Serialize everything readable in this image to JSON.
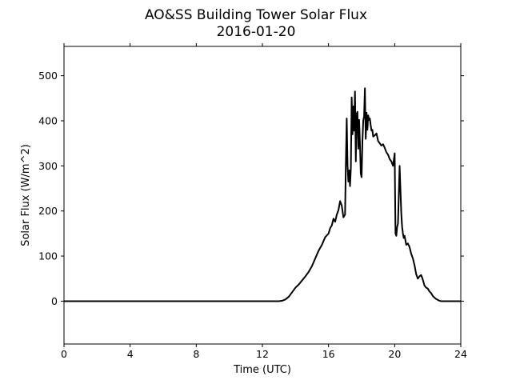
{
  "chart_data": {
    "type": "line",
    "title": "AO&SS Building Tower Solar Flux",
    "subtitle": "2016-01-20",
    "xlabel": "Time (UTC)",
    "ylabel": "Solar Flux (W/m^2)",
    "xlim": [
      0,
      24
    ],
    "ylim": [
      -95,
      565
    ],
    "xticks": [
      0,
      4,
      8,
      12,
      16,
      20,
      24
    ],
    "xtick_labels": [
      "0",
      "4",
      "8",
      "12",
      "16",
      "20",
      "24"
    ],
    "yticks": [
      0,
      100,
      200,
      300,
      400,
      500
    ],
    "ytick_labels": [
      "0",
      "100",
      "200",
      "300",
      "400",
      "500"
    ],
    "grid": false,
    "series": [
      {
        "color": "#000000",
        "x": [
          0,
          2,
          4,
          6,
          8,
          10,
          12,
          13.0,
          13.2,
          13.4,
          13.6,
          13.8,
          14.0,
          14.2,
          14.4,
          14.6,
          14.8,
          15.0,
          15.2,
          15.4,
          15.6,
          15.8,
          16.0,
          16.1,
          16.2,
          16.3,
          16.4,
          16.5,
          16.6,
          16.7,
          16.8,
          16.9,
          17.0,
          17.05,
          17.1,
          17.15,
          17.2,
          17.25,
          17.3,
          17.35,
          17.4,
          17.45,
          17.5,
          17.55,
          17.6,
          17.65,
          17.7,
          17.75,
          17.8,
          17.85,
          17.9,
          17.95,
          18.0,
          18.05,
          18.1,
          18.15,
          18.2,
          18.25,
          18.3,
          18.35,
          18.4,
          18.45,
          18.5,
          18.55,
          18.6,
          18.65,
          18.7,
          18.8,
          18.9,
          19.0,
          19.1,
          19.2,
          19.3,
          19.4,
          19.5,
          19.6,
          19.7,
          19.8,
          19.9,
          20.0,
          20.05,
          20.1,
          20.15,
          20.2,
          20.3,
          20.4,
          20.45,
          20.5,
          20.55,
          20.6,
          20.7,
          20.8,
          20.9,
          21.0,
          21.1,
          21.2,
          21.3,
          21.4,
          21.5,
          21.6,
          21.7,
          21.8,
          21.9,
          22.0,
          22.1,
          22.2,
          22.3,
          22.4,
          22.5,
          22.6,
          22.7,
          22.8,
          22.9,
          23.0,
          23.2,
          23.4,
          23.6,
          23.8,
          24.0
        ],
        "y": [
          0,
          0,
          0,
          0,
          0,
          0,
          0,
          0,
          1,
          4,
          10,
          20,
          30,
          37,
          46,
          55,
          65,
          78,
          95,
          112,
          125,
          142,
          150,
          162,
          168,
          183,
          176,
          192,
          202,
          222,
          212,
          186,
          192,
          310,
          405,
          300,
          265,
          290,
          255,
          295,
          452,
          370,
          432,
          378,
          465,
          310,
          415,
          420,
          338,
          402,
          350,
          283,
          275,
          355,
          400,
          410,
          472,
          360,
          418,
          380,
          412,
          402,
          405,
          390,
          378,
          380,
          365,
          368,
          372,
          355,
          350,
          345,
          348,
          340,
          330,
          325,
          315,
          310,
          300,
          328,
          150,
          145,
          165,
          172,
          300,
          195,
          165,
          150,
          140,
          145,
          125,
          128,
          120,
          105,
          95,
          80,
          60,
          50,
          55,
          58,
          48,
          35,
          30,
          28,
          22,
          18,
          12,
          8,
          5,
          3,
          1,
          0,
          0,
          0,
          0,
          0,
          0,
          0,
          0
        ]
      }
    ]
  }
}
